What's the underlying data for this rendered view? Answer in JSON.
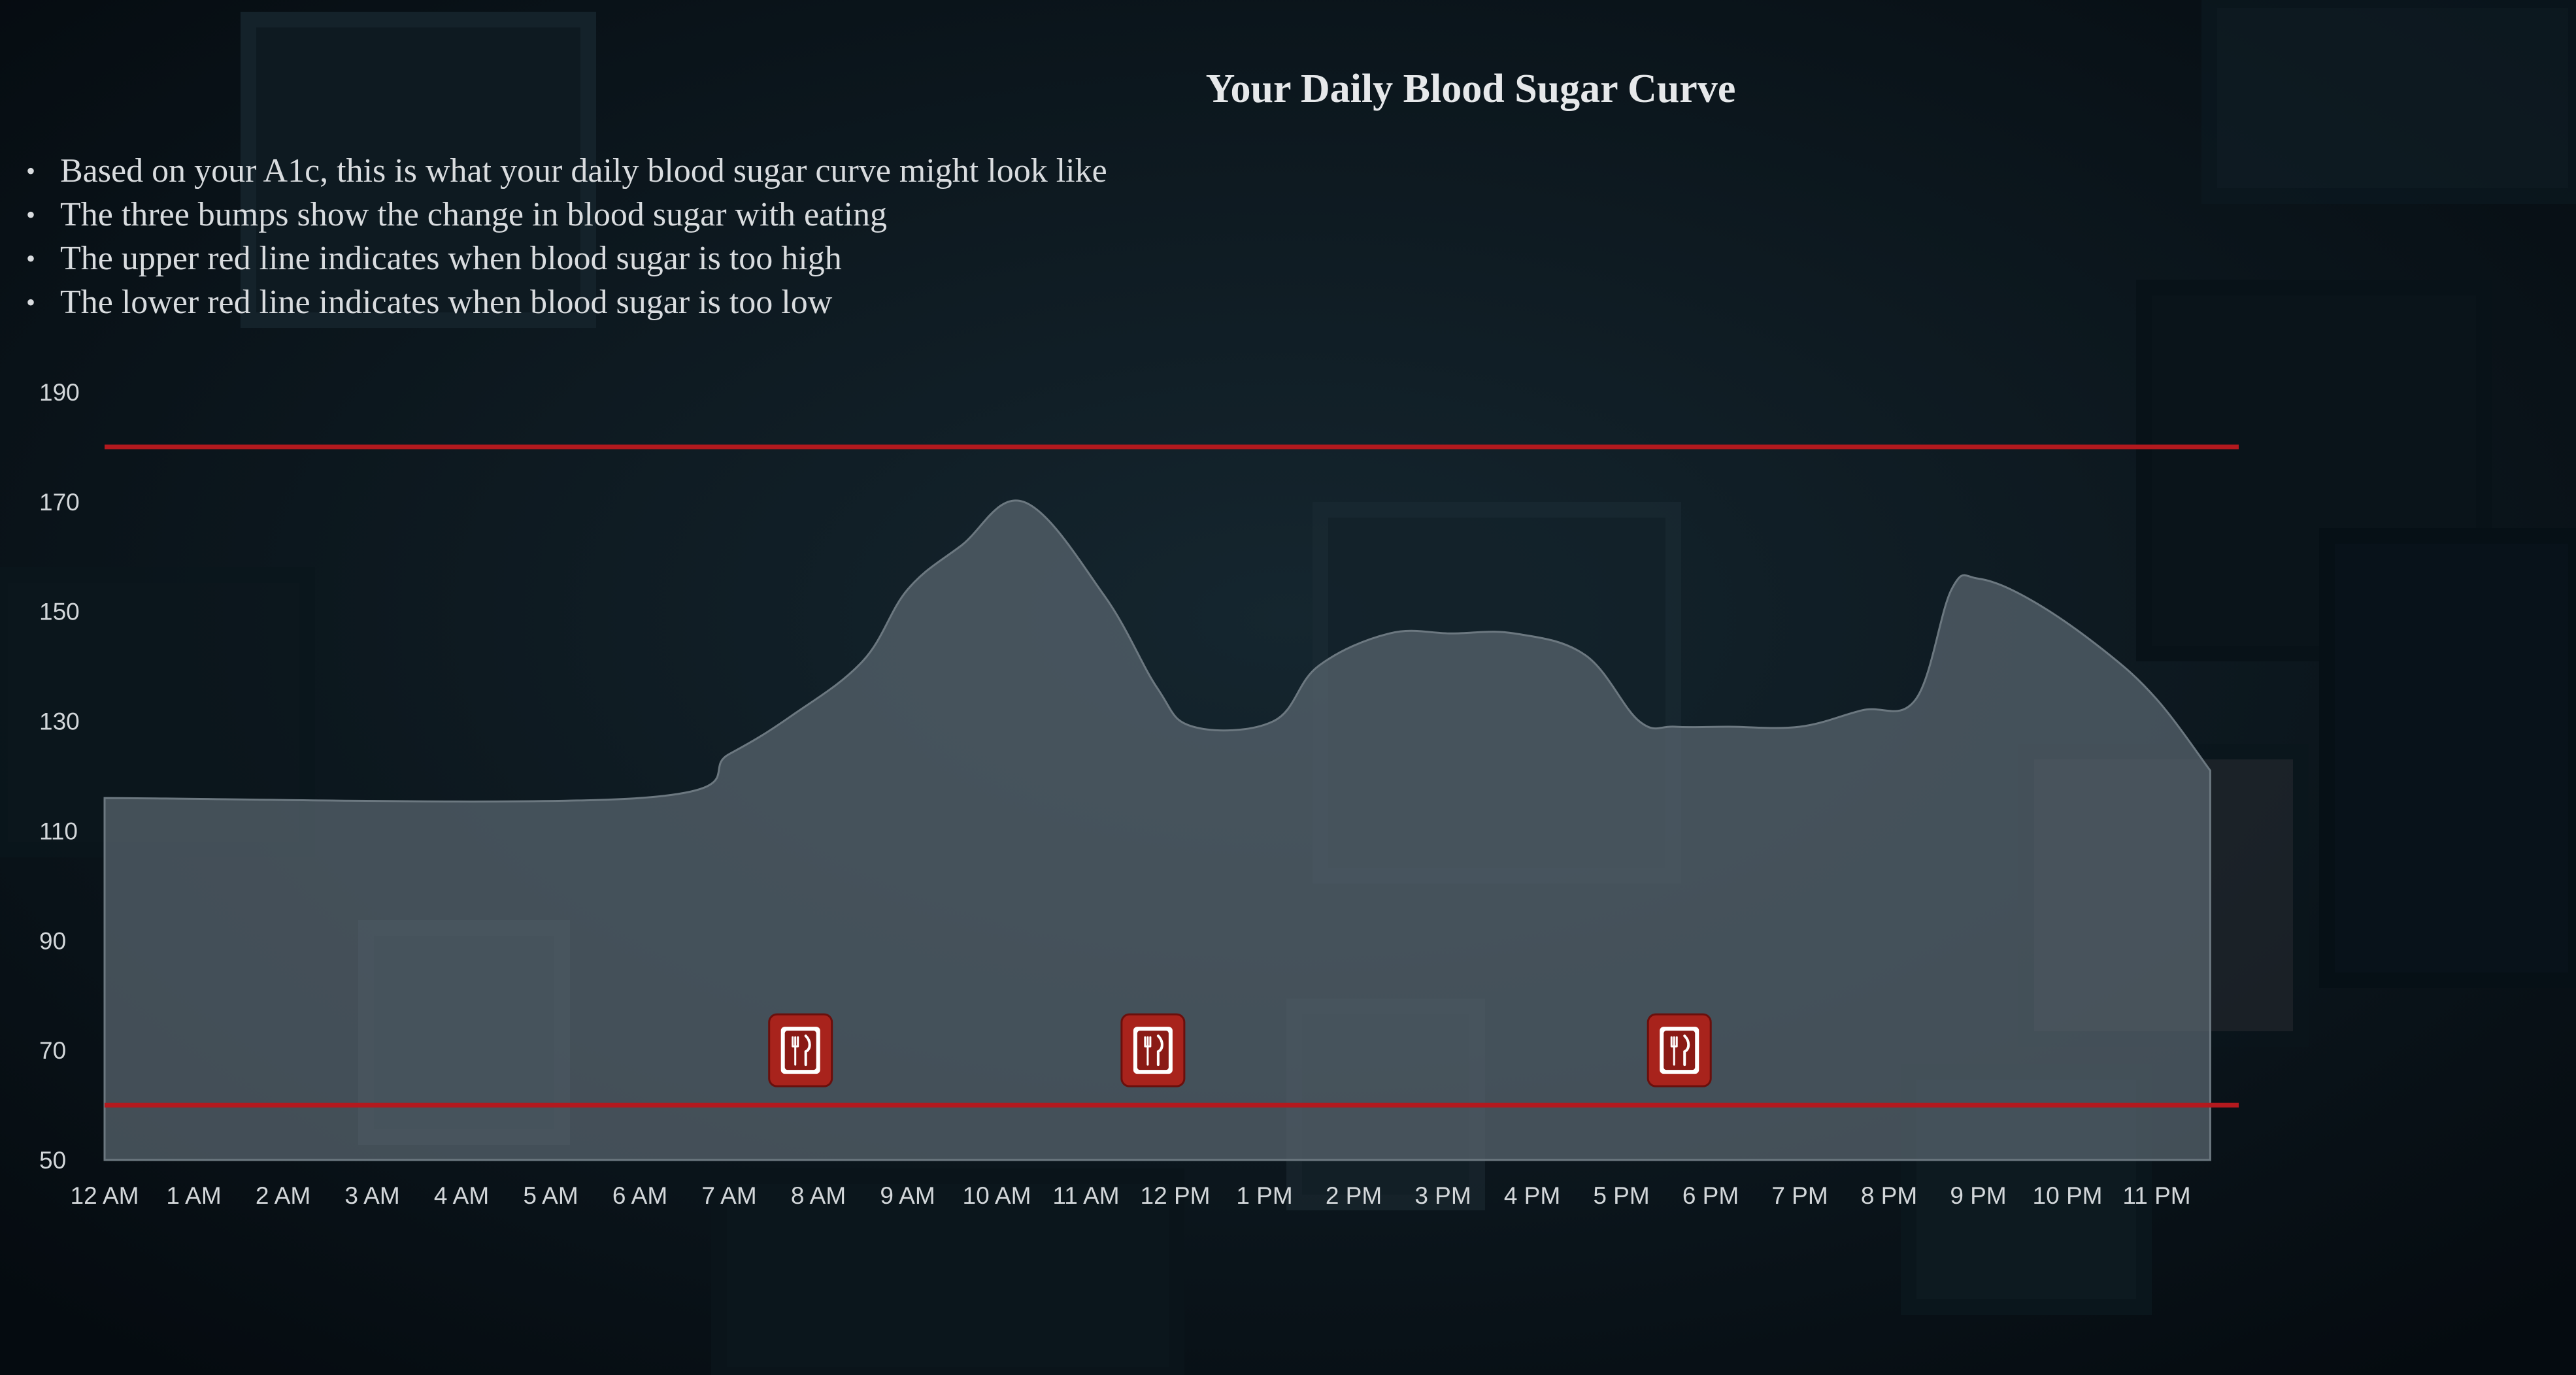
{
  "colors": {
    "background": "#0b1820",
    "area_fill": "#5a6670",
    "limit_line": "#b3191e",
    "meal_icon": "#a8231c",
    "text": "#d9dcdf"
  },
  "bullets": [
    "Based on your A1c, this is what your daily blood sugar curve might look like",
    "The three bumps show the change in blood sugar with eating",
    "The upper red line indicates when blood sugar is too high",
    "The lower red line indicates when blood sugar is too low"
  ],
  "chart_data": {
    "type": "area",
    "title": "Your Daily Blood Sugar Curve",
    "xlabel": "",
    "ylabel": "",
    "categories": [
      "12 AM",
      "1 AM",
      "2 AM",
      "3 AM",
      "4 AM",
      "5 AM",
      "6 AM",
      "7 AM",
      "8 AM",
      "9 AM",
      "10 AM",
      "11 AM",
      "12 PM",
      "1 PM",
      "2 PM",
      "3 PM",
      "4 PM",
      "5 PM",
      "6 PM",
      "7 PM",
      "8 PM",
      "9 PM",
      "10 PM",
      "11 PM"
    ],
    "ylim": [
      50,
      190
    ],
    "yticks": [
      50,
      70,
      90,
      110,
      130,
      150,
      170,
      190
    ],
    "series": [
      {
        "x": [
          0,
          6,
          7,
          7.7,
          8.5,
          9,
          9.6,
          10.3,
          11.2,
          11.8,
          12.2,
          13.1,
          13.6,
          14.4,
          15.1,
          15.8,
          16.6,
          17.2,
          17.6,
          18.2,
          19,
          19.7,
          20.3,
          20.7,
          21,
          21.6,
          22.4,
          23,
          23.6
        ],
        "y": [
          116,
          116,
          124,
          131,
          141,
          154,
          162,
          170,
          153,
          136,
          129,
          130,
          140,
          146,
          146,
          146,
          142,
          130,
          129,
          129,
          129,
          132,
          134,
          154,
          156,
          152,
          143,
          134,
          121
        ]
      }
    ],
    "reference_lines": [
      180,
      60
    ],
    "meal_markers": {
      "icon": "fork-knife-icon",
      "x": [
        7.8,
        11.75,
        17.65
      ],
      "y": 70
    },
    "grid": false,
    "legend": "none"
  }
}
